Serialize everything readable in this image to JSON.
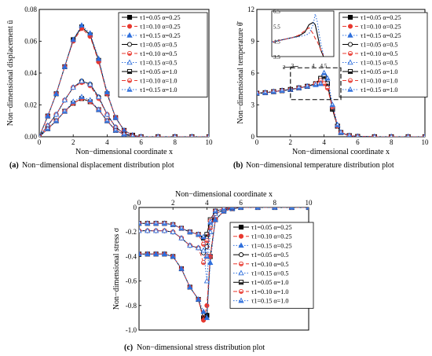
{
  "chart_data": [
    {
      "type": "line",
      "panel": "a",
      "caption_letter": "(a)",
      "caption": "Non−dimensional displacement distribution plot",
      "xlabel": "Non−dimensional coordinate x",
      "ylabel": "Non−dimensional displacement ū",
      "xlim": [
        0,
        10
      ],
      "ylim": [
        0,
        0.08
      ],
      "xticks": [
        "0",
        "2",
        "4",
        "6",
        "8",
        "10"
      ],
      "yticks": [
        "0.00",
        "0.02",
        "0.04",
        "0.06",
        "0.08"
      ],
      "legend_position": "top-right",
      "x": [
        0,
        0.5,
        1,
        1.5,
        2,
        2.5,
        3,
        3.5,
        4,
        4.5,
        5,
        5.5,
        6,
        7,
        8,
        9,
        10
      ],
      "series": [
        {
          "name": "τ1=0.05 α=0.25",
          "values": [
            0,
            0.013,
            0.027,
            0.044,
            0.061,
            0.069,
            0.064,
            0.048,
            0.027,
            0.012,
            0.004,
            0.001,
            0,
            0,
            0,
            0,
            0
          ]
        },
        {
          "name": "τ1=0.10 α=0.25",
          "values": [
            0,
            0.013,
            0.027,
            0.044,
            0.06,
            0.068,
            0.063,
            0.047,
            0.027,
            0.012,
            0.004,
            0.001,
            0,
            0,
            0,
            0,
            0
          ]
        },
        {
          "name": "τ1=0.15 α=0.25",
          "values": [
            0,
            0.013,
            0.027,
            0.044,
            0.061,
            0.07,
            0.065,
            0.049,
            0.028,
            0.012,
            0.004,
            0.001,
            0,
            0,
            0,
            0,
            0
          ]
        },
        {
          "name": "τ1=0.05 α=0.5",
          "values": [
            0,
            0.007,
            0.014,
            0.023,
            0.031,
            0.035,
            0.033,
            0.025,
            0.014,
            0.006,
            0.002,
            0.0005,
            0,
            0,
            0,
            0,
            0
          ]
        },
        {
          "name": "τ1=0.10 α=0.5",
          "values": [
            0,
            0.007,
            0.014,
            0.023,
            0.031,
            0.034,
            0.032,
            0.024,
            0.014,
            0.006,
            0.002,
            0.0005,
            0,
            0,
            0,
            0,
            0
          ]
        },
        {
          "name": "τ1=0.15 α=0.5",
          "values": [
            0,
            0.007,
            0.014,
            0.023,
            0.031,
            0.035,
            0.033,
            0.025,
            0.014,
            0.006,
            0.002,
            0.0005,
            0,
            0,
            0,
            0,
            0
          ]
        },
        {
          "name": "τ1=0.05 α=1.0",
          "values": [
            0,
            0.005,
            0.01,
            0.016,
            0.021,
            0.024,
            0.022,
            0.017,
            0.01,
            0.004,
            0.0015,
            0.0004,
            0,
            0,
            0,
            0,
            0
          ]
        },
        {
          "name": "τ1=0.10 α=1.0",
          "values": [
            0,
            0.005,
            0.01,
            0.016,
            0.021,
            0.024,
            0.022,
            0.017,
            0.01,
            0.004,
            0.0015,
            0.0004,
            0,
            0,
            0,
            0,
            0
          ]
        },
        {
          "name": "τ1=0.15 α=1.0",
          "values": [
            0,
            0.005,
            0.01,
            0.016,
            0.022,
            0.025,
            0.023,
            0.017,
            0.01,
            0.004,
            0.0015,
            0.0004,
            0,
            0,
            0,
            0,
            0
          ]
        }
      ]
    },
    {
      "type": "line",
      "panel": "b",
      "caption_letter": "(b)",
      "caption": "Non−dimensional temperature distribution plot",
      "xlabel": "Non−dimensional coordinate x",
      "ylabel": "Non−dimensional temperature θ̄",
      "xlim": [
        0,
        10
      ],
      "ylim": [
        0,
        12
      ],
      "xticks": [
        "0",
        "2",
        "4",
        "6",
        "8",
        "10"
      ],
      "yticks": [
        "0",
        "3",
        "6",
        "9",
        "12"
      ],
      "legend_position": "top-right",
      "x": [
        0,
        0.5,
        1,
        1.5,
        2,
        2.5,
        3,
        3.5,
        3.8,
        4,
        4.2,
        4.5,
        4.8,
        5,
        5.5,
        6,
        7,
        8,
        9,
        10
      ],
      "series": [
        {
          "name": "τ1=0.05 α=0.25",
          "values": [
            4.1,
            4.15,
            4.25,
            4.35,
            4.45,
            4.6,
            4.75,
            5.0,
            5.5,
            5.7,
            5.0,
            2.6,
            1.0,
            0.4,
            0.1,
            0.02,
            0,
            0,
            0,
            0
          ]
        },
        {
          "name": "τ1=0.10 α=0.25",
          "values": [
            4.1,
            4.15,
            4.25,
            4.35,
            4.45,
            4.6,
            4.75,
            5.0,
            5.3,
            5.0,
            4.6,
            2.8,
            1.0,
            0.4,
            0.1,
            0.02,
            0,
            0,
            0,
            0
          ]
        },
        {
          "name": "τ1=0.15 α=0.25",
          "values": [
            4.1,
            4.15,
            4.25,
            4.35,
            4.45,
            4.6,
            4.75,
            4.9,
            5.0,
            6.0,
            5.5,
            3.0,
            1.1,
            0.4,
            0.1,
            0.02,
            0,
            0,
            0,
            0
          ]
        },
        {
          "name": "τ1=0.05 α=0.5",
          "values": [
            4.1,
            4.15,
            4.25,
            4.35,
            4.45,
            4.6,
            4.75,
            5.0,
            5.5,
            5.7,
            5.0,
            2.6,
            1.0,
            0.4,
            0.1,
            0.02,
            0,
            0,
            0,
            0
          ]
        },
        {
          "name": "τ1=0.10 α=0.5",
          "values": [
            4.1,
            4.15,
            4.25,
            4.35,
            4.45,
            4.6,
            4.75,
            5.0,
            5.3,
            5.0,
            4.6,
            2.8,
            1.0,
            0.4,
            0.1,
            0.02,
            0,
            0,
            0,
            0
          ]
        },
        {
          "name": "τ1=0.15 α=0.5",
          "values": [
            4.1,
            4.15,
            4.25,
            4.35,
            4.45,
            4.6,
            4.75,
            4.9,
            5.0,
            6.0,
            5.5,
            3.0,
            1.1,
            0.4,
            0.1,
            0.02,
            0,
            0,
            0,
            0
          ]
        },
        {
          "name": "τ1=0.05 α=1.0",
          "values": [
            4.1,
            4.15,
            4.25,
            4.35,
            4.45,
            4.6,
            4.75,
            5.0,
            5.5,
            5.7,
            5.0,
            2.6,
            1.0,
            0.4,
            0.1,
            0.02,
            0,
            0,
            0,
            0
          ]
        },
        {
          "name": "τ1=0.10 α=1.0",
          "values": [
            4.1,
            4.15,
            4.25,
            4.35,
            4.45,
            4.6,
            4.75,
            5.0,
            5.3,
            5.0,
            4.6,
            2.8,
            1.0,
            0.4,
            0.1,
            0.02,
            0,
            0,
            0,
            0
          ]
        },
        {
          "name": "τ1=0.15 α=1.0",
          "values": [
            4.1,
            4.15,
            4.25,
            4.35,
            4.45,
            4.6,
            4.75,
            4.9,
            5.0,
            6.0,
            5.5,
            3.0,
            1.1,
            0.4,
            0.1,
            0.02,
            0,
            0,
            0,
            0
          ]
        }
      ],
      "inset": {
        "xlim": [
          2,
          5
        ],
        "ylim": [
          3.5,
          6.5
        ],
        "xticks": [
          "2",
          "3",
          "4",
          "4.5"
        ],
        "yticks": [
          "3.5",
          "4.5",
          "5.5",
          "6.5"
        ],
        "x": [
          2,
          2.5,
          3,
          3.3,
          3.6,
          3.8,
          4.0,
          4.1,
          4.2,
          4.35,
          4.5
        ],
        "series_values": [
          [
            4.45,
            4.6,
            4.75,
            4.85,
            5.1,
            5.6,
            5.75,
            5.6,
            5.0,
            4.0,
            3.5
          ],
          [
            4.45,
            4.6,
            4.75,
            4.9,
            5.2,
            5.4,
            5.0,
            4.7,
            4.5,
            4.0,
            3.6
          ],
          [
            4.45,
            4.6,
            4.75,
            4.8,
            4.9,
            5.0,
            5.6,
            6.3,
            5.8,
            4.5,
            3.6
          ]
        ]
      }
    },
    {
      "type": "line",
      "panel": "c",
      "caption_letter": "(c)",
      "caption": "Non−dimensional stress distribution plot",
      "xlabel": "Non−dimensional coordinate x",
      "ylabel": "Non−dimensional stress σ",
      "xlim": [
        0,
        10
      ],
      "ylim": [
        -1.0,
        0
      ],
      "x_axis_position": "top",
      "xticks": [
        "0",
        "2",
        "4",
        "6",
        "8",
        "10"
      ],
      "yticks": [
        "0",
        "-0.2",
        "-0.4",
        "-0.6",
        "-0.8",
        "-1.0"
      ],
      "legend_position": "right",
      "x": [
        0,
        0.5,
        1,
        1.5,
        2,
        2.5,
        3,
        3.5,
        3.8,
        4,
        4.2,
        4.5,
        5,
        5.5,
        6,
        7,
        8,
        9,
        10
      ],
      "series": [
        {
          "name": "τ1=0.05 α=0.25",
          "values": [
            -0.38,
            -0.38,
            -0.38,
            -0.38,
            -0.4,
            -0.5,
            -0.65,
            -0.75,
            -0.9,
            -0.88,
            -0.4,
            -0.1,
            -0.03,
            -0.01,
            0,
            0,
            0,
            0,
            0
          ]
        },
        {
          "name": "τ1=0.10 α=0.25",
          "values": [
            -0.38,
            -0.38,
            -0.38,
            -0.38,
            -0.4,
            -0.5,
            -0.65,
            -0.75,
            -0.92,
            -0.8,
            -0.4,
            -0.1,
            -0.03,
            -0.01,
            0,
            0,
            0,
            0,
            0
          ]
        },
        {
          "name": "τ1=0.15 α=0.25",
          "values": [
            -0.38,
            -0.38,
            -0.38,
            -0.38,
            -0.4,
            -0.5,
            -0.65,
            -0.75,
            -0.85,
            -0.9,
            -0.45,
            -0.1,
            -0.03,
            -0.01,
            0,
            0,
            0,
            0,
            0
          ]
        },
        {
          "name": "τ1=0.05 α=0.5",
          "values": [
            -0.19,
            -0.19,
            -0.19,
            -0.19,
            -0.2,
            -0.25,
            -0.31,
            -0.33,
            -0.37,
            -0.32,
            -0.15,
            -0.05,
            -0.02,
            -0.005,
            0,
            0,
            0,
            0,
            0
          ]
        },
        {
          "name": "τ1=0.10 α=0.5",
          "values": [
            -0.19,
            -0.19,
            -0.19,
            -0.19,
            -0.2,
            -0.25,
            -0.31,
            -0.33,
            -0.45,
            -0.4,
            -0.17,
            -0.05,
            -0.02,
            -0.005,
            0,
            0,
            0,
            0,
            0
          ]
        },
        {
          "name": "τ1=0.15 α=0.5",
          "values": [
            -0.19,
            -0.19,
            -0.19,
            -0.19,
            -0.2,
            -0.25,
            -0.31,
            -0.33,
            -0.35,
            -0.6,
            -0.2,
            -0.05,
            -0.02,
            -0.005,
            0,
            0,
            0,
            0,
            0
          ]
        },
        {
          "name": "τ1=0.05 α=1.0",
          "values": [
            -0.13,
            -0.13,
            -0.13,
            -0.13,
            -0.14,
            -0.17,
            -0.2,
            -0.22,
            -0.25,
            -0.22,
            -0.1,
            -0.03,
            -0.01,
            0,
            0,
            0,
            0,
            0,
            0
          ]
        },
        {
          "name": "τ1=0.10 α=1.0",
          "values": [
            -0.13,
            -0.13,
            -0.13,
            -0.13,
            -0.14,
            -0.17,
            -0.2,
            -0.22,
            -0.3,
            -0.27,
            -0.11,
            -0.03,
            -0.01,
            0,
            0,
            0,
            0,
            0,
            0
          ]
        },
        {
          "name": "τ1=0.15 α=1.0",
          "values": [
            -0.13,
            -0.13,
            -0.13,
            -0.13,
            -0.14,
            -0.17,
            -0.2,
            -0.22,
            -0.24,
            -0.4,
            -0.12,
            -0.03,
            -0.01,
            0,
            0,
            0,
            0,
            0,
            0
          ]
        }
      ]
    }
  ],
  "series_styles": [
    {
      "color": "#000000",
      "dash": "",
      "marker": "square-filled"
    },
    {
      "color": "#e8382f",
      "dash": "5,3",
      "marker": "circle-filled"
    },
    {
      "color": "#2f6fdc",
      "dash": "1.5,2",
      "marker": "triangle-filled"
    },
    {
      "color": "#000000",
      "dash": "",
      "marker": "circle-open"
    },
    {
      "color": "#e8382f",
      "dash": "5,3",
      "marker": "circle-half"
    },
    {
      "color": "#2f6fdc",
      "dash": "1.5,2",
      "marker": "triangle-open"
    },
    {
      "color": "#000000",
      "dash": "",
      "marker": "square-half"
    },
    {
      "color": "#e8382f",
      "dash": "5,3",
      "marker": "circle-half"
    },
    {
      "color": "#2f6fdc",
      "dash": "1.5,2",
      "marker": "triangle-half"
    }
  ]
}
